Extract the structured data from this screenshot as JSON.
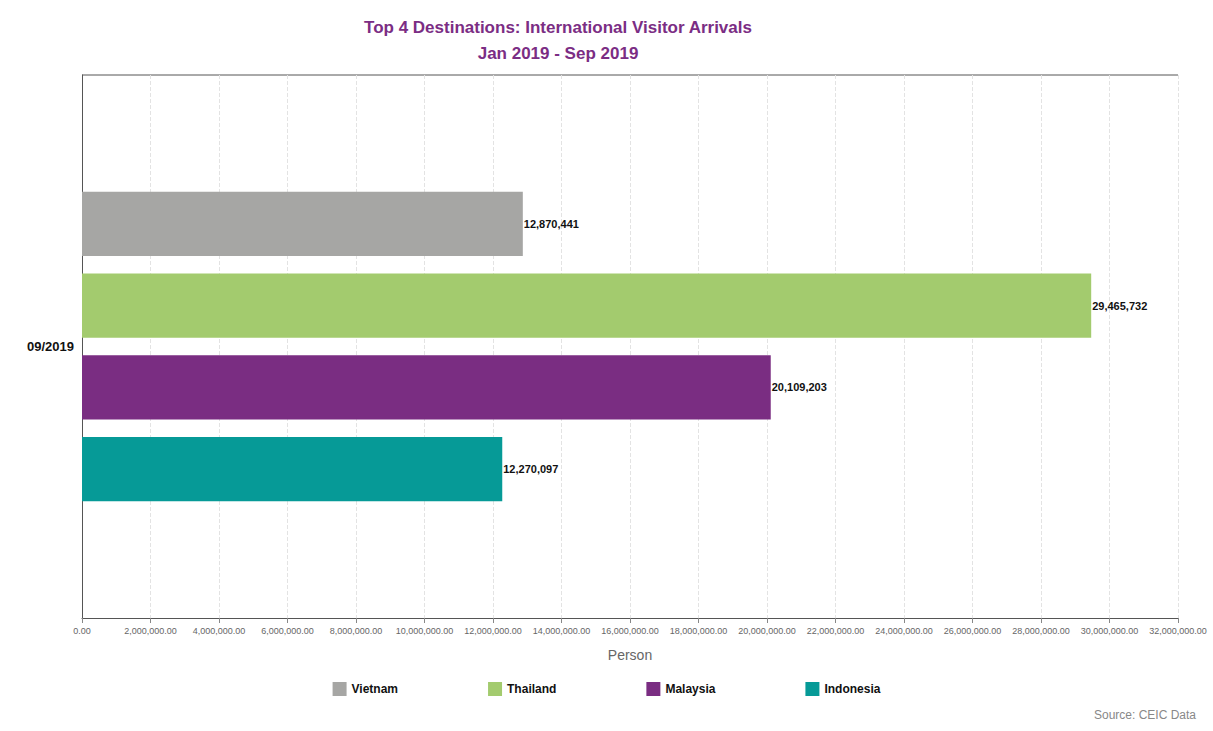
{
  "chart_data": {
    "type": "bar",
    "orientation": "horizontal",
    "title": "Top 4 Destinations: International Visitor Arrivals",
    "subtitle": "Jan 2019 - Sep 2019",
    "xlabel": "Person",
    "source": "Source: CEIC Data",
    "categories": [
      "09/2019"
    ],
    "series": [
      {
        "name": "Vietnam",
        "color": "#a6a6a4",
        "values": [
          12870441
        ],
        "value_labels": [
          "12,870,441"
        ]
      },
      {
        "name": "Thailand",
        "color": "#a3cb6e",
        "values": [
          29465732
        ],
        "value_labels": [
          "29,465,732"
        ]
      },
      {
        "name": "Malaysia",
        "color": "#7a2d82",
        "values": [
          20109203
        ],
        "value_labels": [
          "20,109,203"
        ]
      },
      {
        "name": "Indonesia",
        "color": "#069a97",
        "values": [
          12270097
        ],
        "value_labels": [
          "12,270,097"
        ]
      }
    ],
    "xlim": [
      0,
      32000000
    ],
    "xticks": [
      {
        "value": 0,
        "label": "0.00"
      },
      {
        "value": 2000000,
        "label": "2,000,000.00"
      },
      {
        "value": 4000000,
        "label": "4,000,000.00"
      },
      {
        "value": 6000000,
        "label": "6,000,000.00"
      },
      {
        "value": 8000000,
        "label": "8,000,000.00"
      },
      {
        "value": 10000000,
        "label": "10,000,000.00"
      },
      {
        "value": 12000000,
        "label": "12,000,000.00"
      },
      {
        "value": 14000000,
        "label": "14,000,000.00"
      },
      {
        "value": 16000000,
        "label": "16,000,000.00"
      },
      {
        "value": 18000000,
        "label": "18,000,000.00"
      },
      {
        "value": 20000000,
        "label": "20,000,000.00"
      },
      {
        "value": 22000000,
        "label": "22,000,000.00"
      },
      {
        "value": 24000000,
        "label": "24,000,000.00"
      },
      {
        "value": 26000000,
        "label": "26,000,000.00"
      },
      {
        "value": 28000000,
        "label": "28,000,000.00"
      },
      {
        "value": 30000000,
        "label": "30,000,000.00"
      },
      {
        "value": 32000000,
        "label": "32,000,000.00"
      }
    ],
    "grid": true,
    "legend": "bottom",
    "data_labels": true
  }
}
